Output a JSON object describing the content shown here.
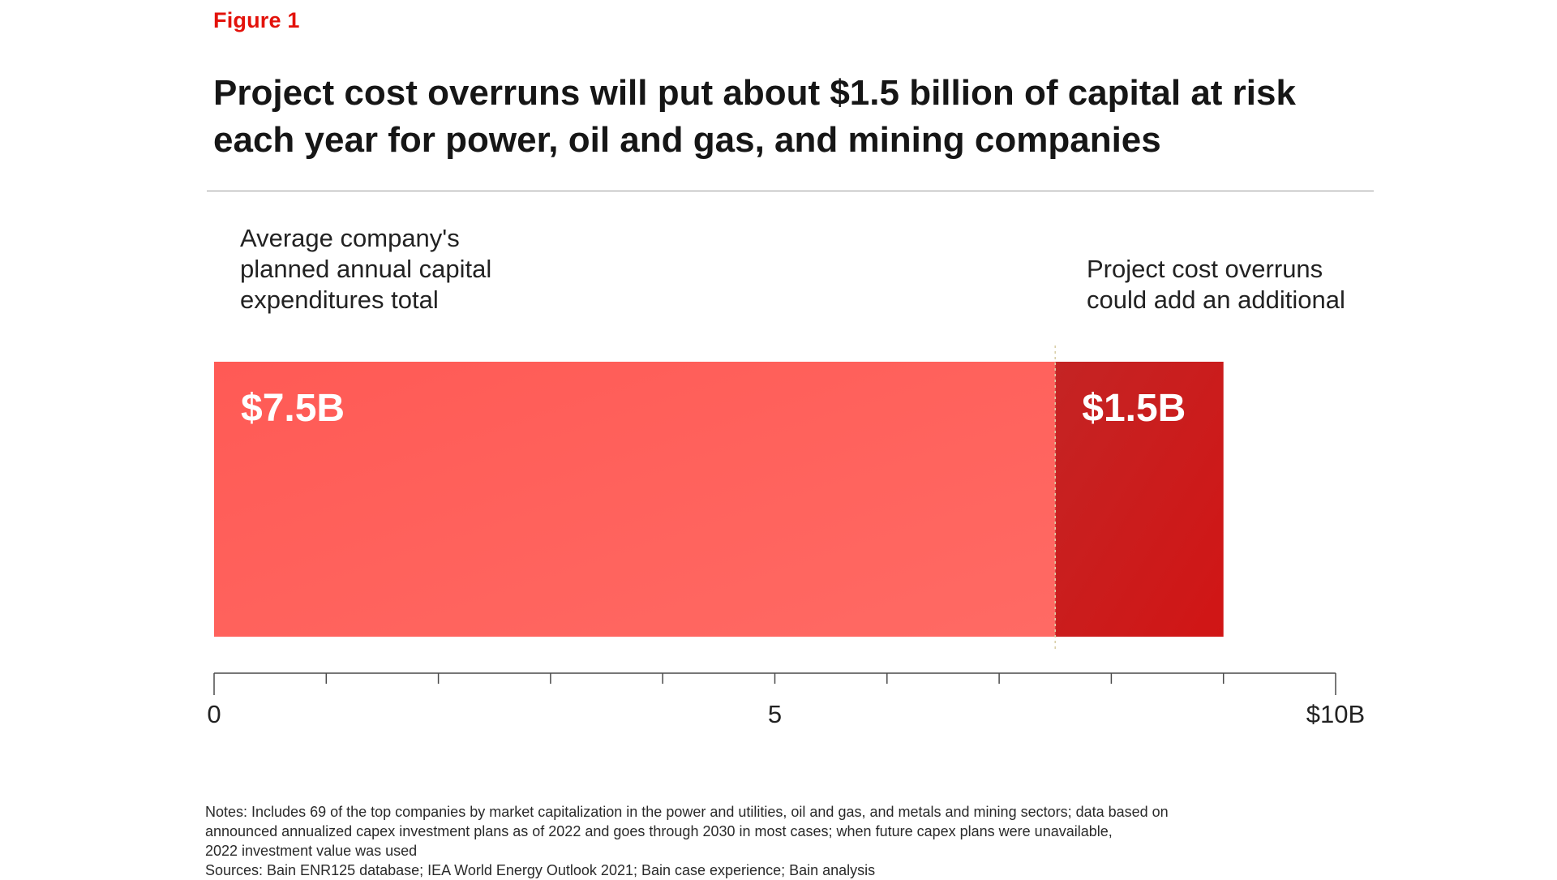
{
  "figure_label": "Figure 1",
  "title": "Project cost overruns will put about $1.5 billion of capital at risk each year for power, oil and gas, and mining companies",
  "annotations": {
    "left_lines": [
      "Average company's",
      "planned annual capital",
      "expenditures total"
    ],
    "right_lines": [
      "Project cost overruns",
      "could add an additional"
    ]
  },
  "colors": {
    "accent": "#e3120b",
    "bar_base": "#ff5a55",
    "bar_overrun": "#cc1c1c",
    "axis": "#4a4a4a"
  },
  "chart_data": {
    "type": "bar",
    "orientation": "horizontal",
    "stacked": true,
    "series": [
      {
        "value": 7.5,
        "label": "$7.5B"
      },
      {
        "value": 1.5,
        "label": "$1.5B"
      }
    ],
    "xlim": [
      0,
      10
    ],
    "x_ticks": [
      0,
      1,
      2,
      3,
      4,
      5,
      6,
      7,
      8,
      9,
      10
    ],
    "x_tick_labels": [
      {
        "value": 0,
        "label": "0"
      },
      {
        "value": 5,
        "label": "5"
      },
      {
        "value": 10,
        "label": "$10B"
      }
    ],
    "divider_at": 7.5,
    "grid": false,
    "legend": "none"
  },
  "notes": [
    "Notes: Includes 69 of the top companies by market capitalization in the power and utilities, oil and gas, and metals and mining sectors; data based on",
    "announced annualized capex investment plans as of 2022 and goes through 2030 in most cases; when future capex plans were unavailable,",
    "2022 investment value was used"
  ],
  "sources": "Sources: Bain ENR125 database; IEA World Energy Outlook 2021; Bain case experience; Bain analysis"
}
